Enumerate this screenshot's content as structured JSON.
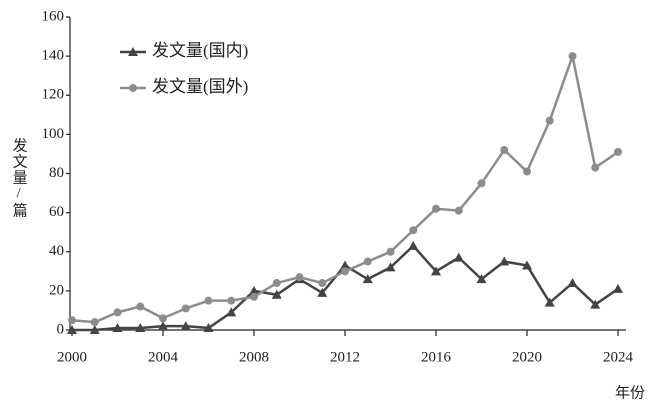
{
  "chart_data": {
    "type": "line",
    "x_label": "年份",
    "y_label": "发文量/篇",
    "x": [
      2000,
      2001,
      2002,
      2003,
      2004,
      2005,
      2006,
      2007,
      2008,
      2009,
      2010,
      2011,
      2012,
      2013,
      2014,
      2015,
      2016,
      2017,
      2018,
      2019,
      2020,
      2021,
      2022,
      2023,
      2024
    ],
    "series": [
      {
        "name": "发文量(国内)",
        "color": "#444444",
        "marker": "triangle",
        "values": [
          0,
          0,
          1,
          1,
          2,
          2,
          1,
          9,
          20,
          18,
          26,
          19,
          33,
          26,
          32,
          43,
          30,
          37,
          26,
          35,
          33,
          14,
          24,
          13,
          21
        ]
      },
      {
        "name": "发文量(国外)",
        "color": "#8c8c8c",
        "marker": "circle",
        "values": [
          5,
          4,
          9,
          12,
          6,
          11,
          15,
          15,
          17,
          24,
          27,
          24,
          30,
          35,
          40,
          51,
          62,
          61,
          75,
          92,
          81,
          107,
          140,
          83,
          91
        ]
      }
    ],
    "xlim": [
      2000,
      2024
    ],
    "xticks": [
      2000,
      2004,
      2008,
      2012,
      2016,
      2020,
      2024
    ],
    "ylim": [
      0,
      160
    ],
    "yticks": [
      0,
      20,
      40,
      60,
      80,
      100,
      120,
      140,
      160
    ],
    "grid": false
  }
}
